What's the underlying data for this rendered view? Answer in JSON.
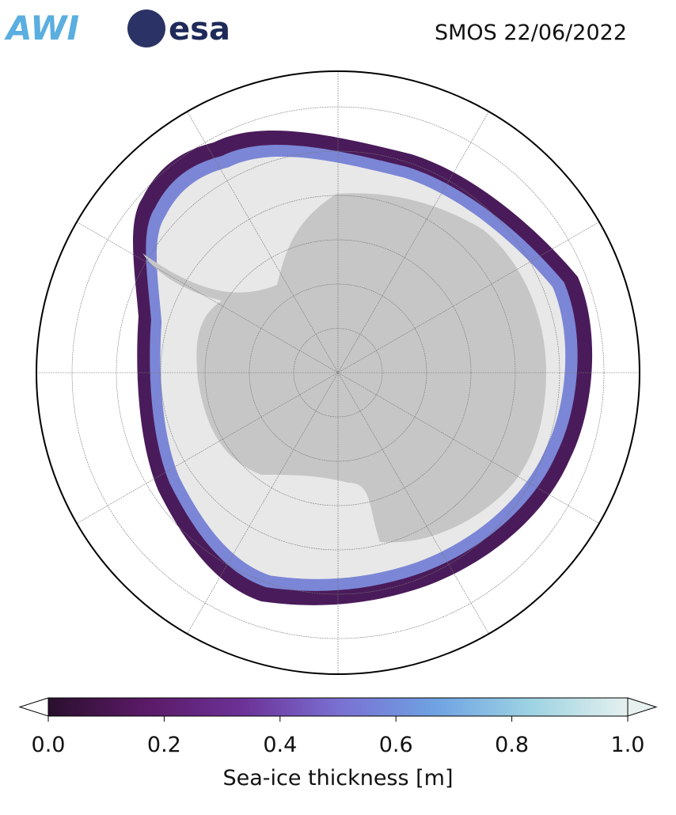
{
  "header": {
    "logos": [
      "AWI",
      "esa"
    ],
    "title": "SMOS 22/06/2022"
  },
  "colorbar": {
    "label": "Sea-ice thickness [m]",
    "lim": [
      0,
      1
    ],
    "ticks": [
      {
        "value": 0,
        "label": "0.0"
      },
      {
        "value": 0.2,
        "label": "0.2"
      },
      {
        "value": 0.4,
        "label": "0.4"
      },
      {
        "value": 0.6,
        "label": "0.6"
      },
      {
        "value": 0.8,
        "label": "0.8"
      },
      {
        "value": 1,
        "label": "1.0"
      }
    ],
    "colors": [
      "#2a0f2e",
      "#5a1a66",
      "#6c3196",
      "#7a6fd2",
      "#6fa2e2",
      "#9dd3e2",
      "#e6f0ee"
    ]
  }
}
